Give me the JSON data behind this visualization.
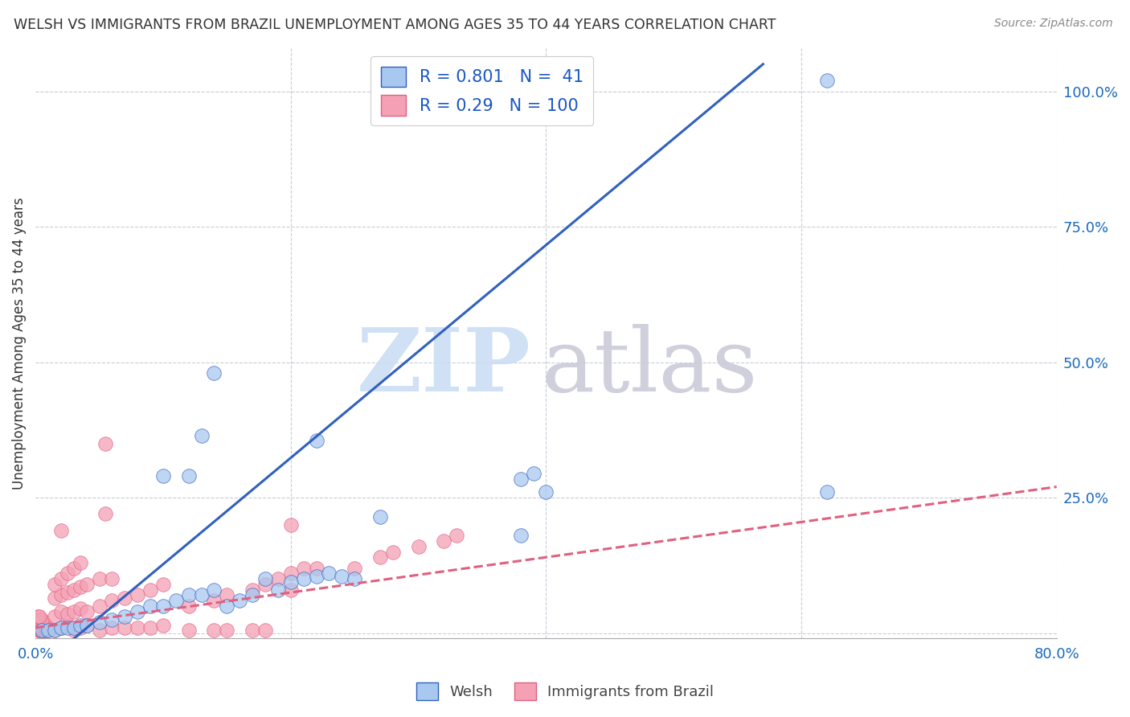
{
  "title": "WELSH VS IMMIGRANTS FROM BRAZIL UNEMPLOYMENT AMONG AGES 35 TO 44 YEARS CORRELATION CHART",
  "source": "Source: ZipAtlas.com",
  "ylabel": "Unemployment Among Ages 35 to 44 years",
  "xlim": [
    0.0,
    0.8
  ],
  "ylim": [
    -0.01,
    1.08
  ],
  "y_ticks_right": [
    0.0,
    0.25,
    0.5,
    0.75,
    1.0
  ],
  "y_tick_labels_right": [
    "",
    "25.0%",
    "50.0%",
    "75.0%",
    "100.0%"
  ],
  "welsh_color": "#a8c8f0",
  "brazil_color": "#f4a0b5",
  "welsh_line_color": "#3060c0",
  "brazil_line_color": "#e06080",
  "welsh_R": 0.801,
  "welsh_N": 41,
  "brazil_R": 0.29,
  "brazil_N": 100,
  "legend_R_color": "#1a56c4",
  "watermark_color_zip": "#c8dcf4",
  "watermark_color_atlas": "#c8c8d8",
  "welsh_line_x0": 0.02,
  "welsh_line_y0": -0.03,
  "welsh_line_x1": 0.57,
  "welsh_line_y1": 1.05,
  "brazil_line_x0": 0.0,
  "brazil_line_y0": 0.01,
  "brazil_line_x1": 0.8,
  "brazil_line_y1": 0.27,
  "welsh_scatter_x": [
    0.005,
    0.01,
    0.015,
    0.02,
    0.025,
    0.03,
    0.035,
    0.04,
    0.05,
    0.06,
    0.07,
    0.08,
    0.09,
    0.1,
    0.11,
    0.12,
    0.13,
    0.14,
    0.15,
    0.16,
    0.17,
    0.18,
    0.19,
    0.2,
    0.21,
    0.22,
    0.23,
    0.24,
    0.25,
    0.13,
    0.14,
    0.38,
    0.39,
    0.1,
    0.12,
    0.22,
    0.27,
    0.4,
    0.38,
    0.62,
    0.62
  ],
  "welsh_scatter_y": [
    0.005,
    0.005,
    0.005,
    0.01,
    0.01,
    0.01,
    0.015,
    0.015,
    0.02,
    0.025,
    0.03,
    0.04,
    0.05,
    0.05,
    0.06,
    0.07,
    0.07,
    0.08,
    0.05,
    0.06,
    0.07,
    0.1,
    0.08,
    0.095,
    0.1,
    0.105,
    0.11,
    0.105,
    0.1,
    0.365,
    0.48,
    0.285,
    0.295,
    0.29,
    0.29,
    0.355,
    0.215,
    0.26,
    0.18,
    0.26,
    1.02
  ],
  "brazil_scatter_x": [
    0.002,
    0.003,
    0.004,
    0.005,
    0.006,
    0.007,
    0.008,
    0.009,
    0.01,
    0.002,
    0.003,
    0.004,
    0.005,
    0.006,
    0.007,
    0.008,
    0.009,
    0.01,
    0.002,
    0.003,
    0.004,
    0.005,
    0.006,
    0.007,
    0.008,
    0.002,
    0.003,
    0.004,
    0.005,
    0.006,
    0.002,
    0.003,
    0.004,
    0.005,
    0.002,
    0.003,
    0.015,
    0.02,
    0.025,
    0.03,
    0.035,
    0.04,
    0.05,
    0.06,
    0.07,
    0.08,
    0.09,
    0.1,
    0.015,
    0.02,
    0.025,
    0.03,
    0.035,
    0.04,
    0.05,
    0.06,
    0.07,
    0.08,
    0.09,
    0.1,
    0.015,
    0.02,
    0.025,
    0.03,
    0.035,
    0.04,
    0.05,
    0.06,
    0.015,
    0.02,
    0.025,
    0.03,
    0.035,
    0.12,
    0.14,
    0.15,
    0.17,
    0.18,
    0.19,
    0.2,
    0.21,
    0.22,
    0.12,
    0.14,
    0.15,
    0.17,
    0.18,
    0.25,
    0.27,
    0.28,
    0.3,
    0.32,
    0.33,
    0.055,
    0.055,
    0.02,
    0.2,
    0.2
  ],
  "brazil_scatter_y": [
    0.005,
    0.005,
    0.005,
    0.005,
    0.005,
    0.005,
    0.005,
    0.005,
    0.005,
    0.01,
    0.01,
    0.01,
    0.01,
    0.01,
    0.01,
    0.01,
    0.01,
    0.01,
    0.015,
    0.015,
    0.015,
    0.015,
    0.015,
    0.015,
    0.015,
    0.02,
    0.02,
    0.02,
    0.02,
    0.02,
    0.025,
    0.025,
    0.025,
    0.025,
    0.03,
    0.03,
    0.005,
    0.01,
    0.015,
    0.005,
    0.01,
    0.015,
    0.005,
    0.01,
    0.01,
    0.01,
    0.01,
    0.015,
    0.03,
    0.04,
    0.035,
    0.04,
    0.045,
    0.04,
    0.05,
    0.06,
    0.065,
    0.07,
    0.08,
    0.09,
    0.065,
    0.07,
    0.075,
    0.08,
    0.085,
    0.09,
    0.1,
    0.1,
    0.09,
    0.1,
    0.11,
    0.12,
    0.13,
    0.05,
    0.06,
    0.07,
    0.08,
    0.09,
    0.1,
    0.11,
    0.12,
    0.12,
    0.005,
    0.005,
    0.005,
    0.005,
    0.005,
    0.12,
    0.14,
    0.15,
    0.16,
    0.17,
    0.18,
    0.35,
    0.22,
    0.19,
    0.2,
    0.08
  ]
}
